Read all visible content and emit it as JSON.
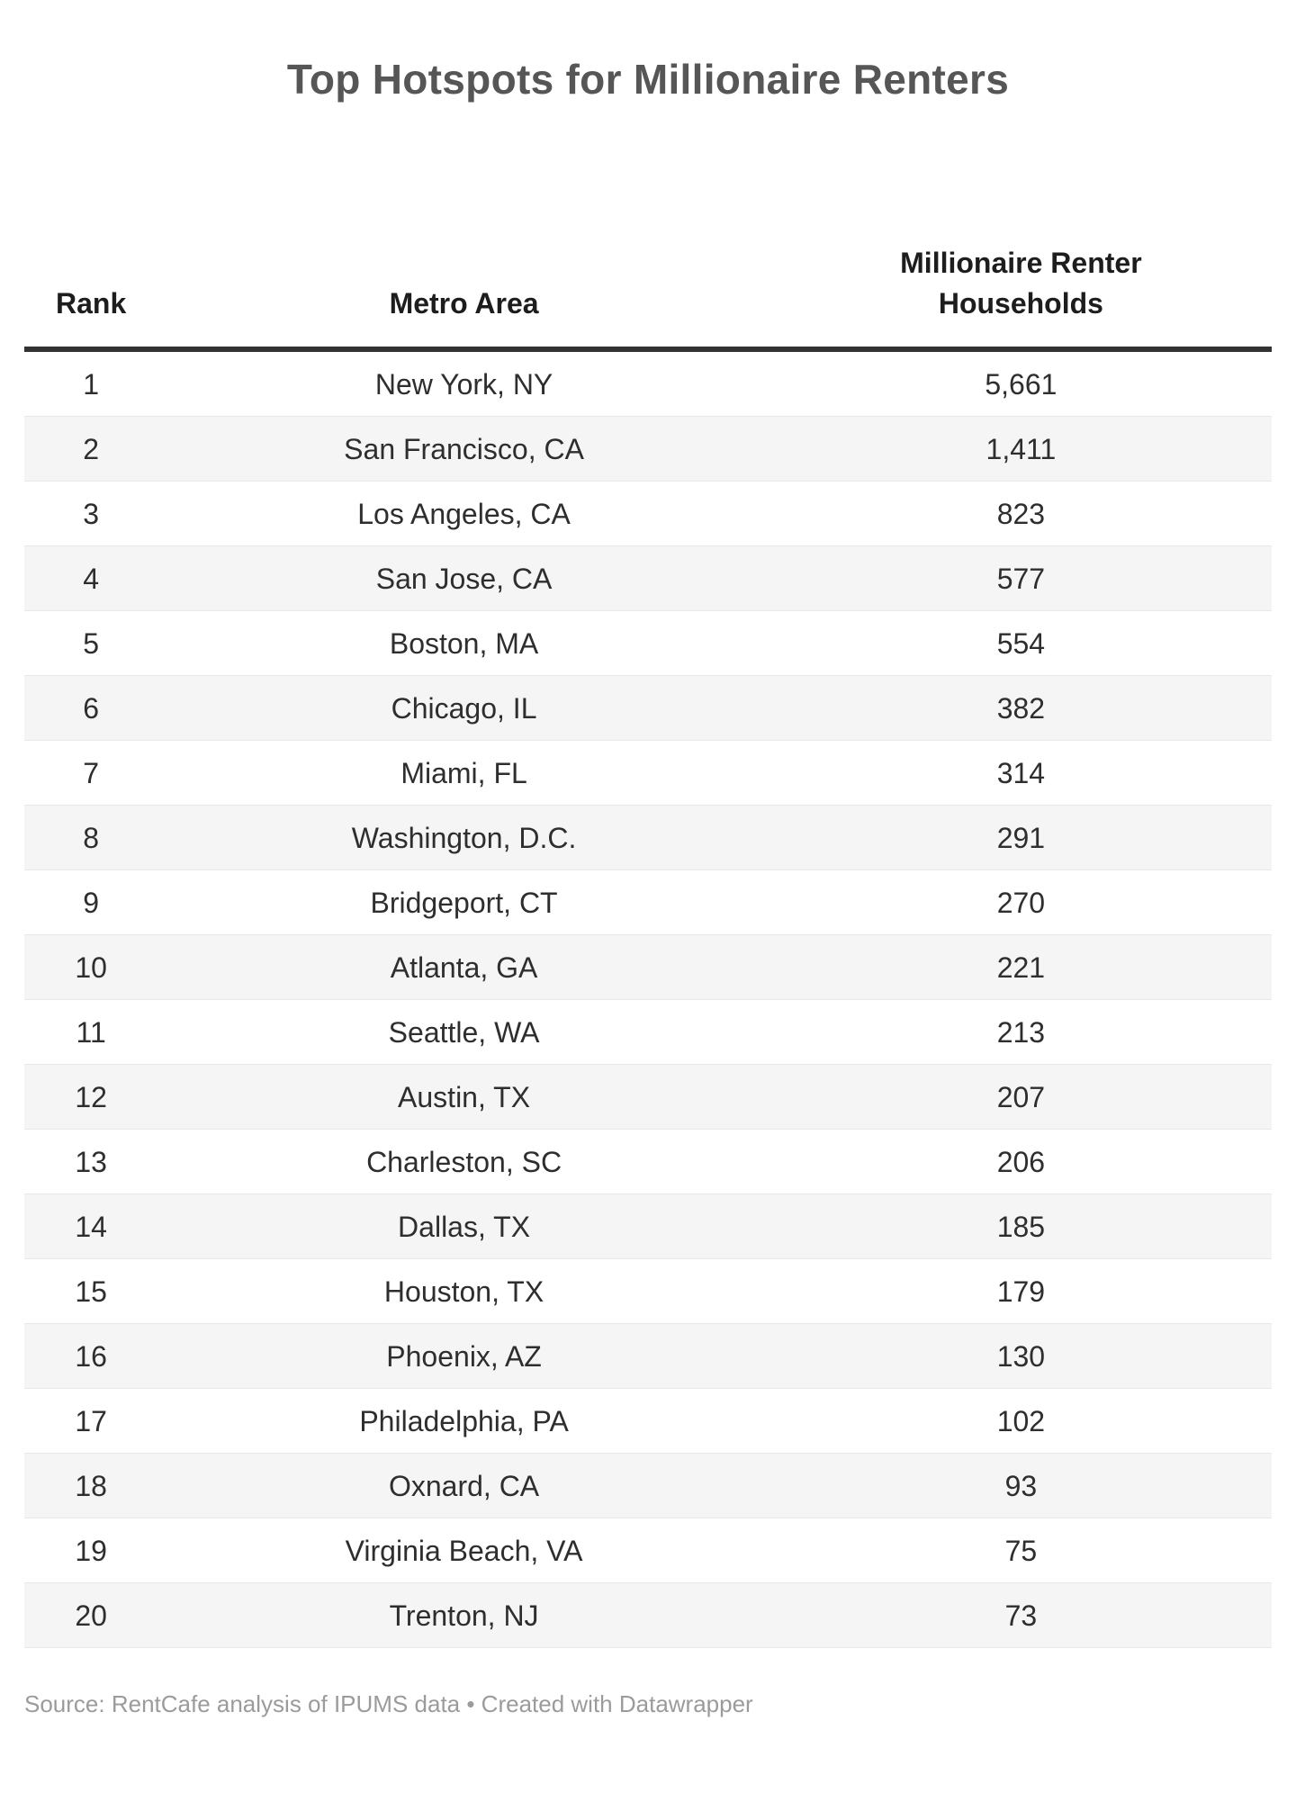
{
  "title": "Top Hotspots for Millionaire Renters",
  "table": {
    "headers": [
      "Rank",
      "Metro Area",
      "Millionaire Renter Households"
    ],
    "rows": [
      {
        "rank": "1",
        "metro": "New York, NY",
        "households": "5,661"
      },
      {
        "rank": "2",
        "metro": "San Francisco, CA",
        "households": "1,411"
      },
      {
        "rank": "3",
        "metro": "Los Angeles, CA",
        "households": "823"
      },
      {
        "rank": "4",
        "metro": "San Jose, CA",
        "households": "577"
      },
      {
        "rank": "5",
        "metro": "Boston, MA",
        "households": "554"
      },
      {
        "rank": "6",
        "metro": "Chicago, IL",
        "households": "382"
      },
      {
        "rank": "7",
        "metro": "Miami, FL",
        "households": "314"
      },
      {
        "rank": "8",
        "metro": "Washington, D.C.",
        "households": "291"
      },
      {
        "rank": "9",
        "metro": "Bridgeport, CT",
        "households": "270"
      },
      {
        "rank": "10",
        "metro": "Atlanta, GA",
        "households": "221"
      },
      {
        "rank": "11",
        "metro": "Seattle, WA",
        "households": "213"
      },
      {
        "rank": "12",
        "metro": "Austin, TX",
        "households": "207"
      },
      {
        "rank": "13",
        "metro": "Charleston, SC",
        "households": "206"
      },
      {
        "rank": "14",
        "metro": "Dallas, TX",
        "households": "185"
      },
      {
        "rank": "15",
        "metro": "Houston, TX",
        "households": "179"
      },
      {
        "rank": "16",
        "metro": "Phoenix, AZ",
        "households": "130"
      },
      {
        "rank": "17",
        "metro": "Philadelphia, PA",
        "households": "102"
      },
      {
        "rank": "18",
        "metro": "Oxnard, CA",
        "households": "93"
      },
      {
        "rank": "19",
        "metro": "Virginia Beach, VA",
        "households": "75"
      },
      {
        "rank": "20",
        "metro": "Trenton, NJ",
        "households": "73"
      }
    ]
  },
  "footer": {
    "source": "Source: RentCafe analysis of IPUMS data • Created with Datawrapper"
  },
  "colors": {
    "title-color": "#565656",
    "header-color": "#1d1d1d",
    "body-color": "#2e2e2e",
    "rule-color": "#333333",
    "row-alt": "#f5f5f5",
    "row-border": "#e8e8e8",
    "footer-color": "#9b9b9b",
    "page-bg": "#ffffff"
  },
  "chart_data": {
    "type": "table",
    "title": "Top Hotspots for Millionaire Renters",
    "columns": [
      "Rank",
      "Metro Area",
      "Millionaire Renter Households"
    ],
    "rows": [
      [
        1,
        "New York, NY",
        5661
      ],
      [
        2,
        "San Francisco, CA",
        1411
      ],
      [
        3,
        "Los Angeles, CA",
        823
      ],
      [
        4,
        "San Jose, CA",
        577
      ],
      [
        5,
        "Boston, MA",
        554
      ],
      [
        6,
        "Chicago, IL",
        382
      ],
      [
        7,
        "Miami, FL",
        314
      ],
      [
        8,
        "Washington, D.C.",
        291
      ],
      [
        9,
        "Bridgeport, CT",
        270
      ],
      [
        10,
        "Atlanta, GA",
        221
      ],
      [
        11,
        "Seattle, WA",
        213
      ],
      [
        12,
        "Austin, TX",
        207
      ],
      [
        13,
        "Charleston, SC",
        206
      ],
      [
        14,
        "Dallas, TX",
        185
      ],
      [
        15,
        "Houston, TX",
        179
      ],
      [
        16,
        "Phoenix, AZ",
        130
      ],
      [
        17,
        "Philadelphia, PA",
        102
      ],
      [
        18,
        "Oxnard, CA",
        93
      ],
      [
        19,
        "Virginia Beach, VA",
        75
      ],
      [
        20,
        "Trenton, NJ",
        73
      ]
    ],
    "layout": {
      "striped_rows": true,
      "stripe_start": "even",
      "header_rule": true,
      "source_line": "Source: RentCafe analysis of IPUMS data • Created with Datawrapper"
    }
  }
}
